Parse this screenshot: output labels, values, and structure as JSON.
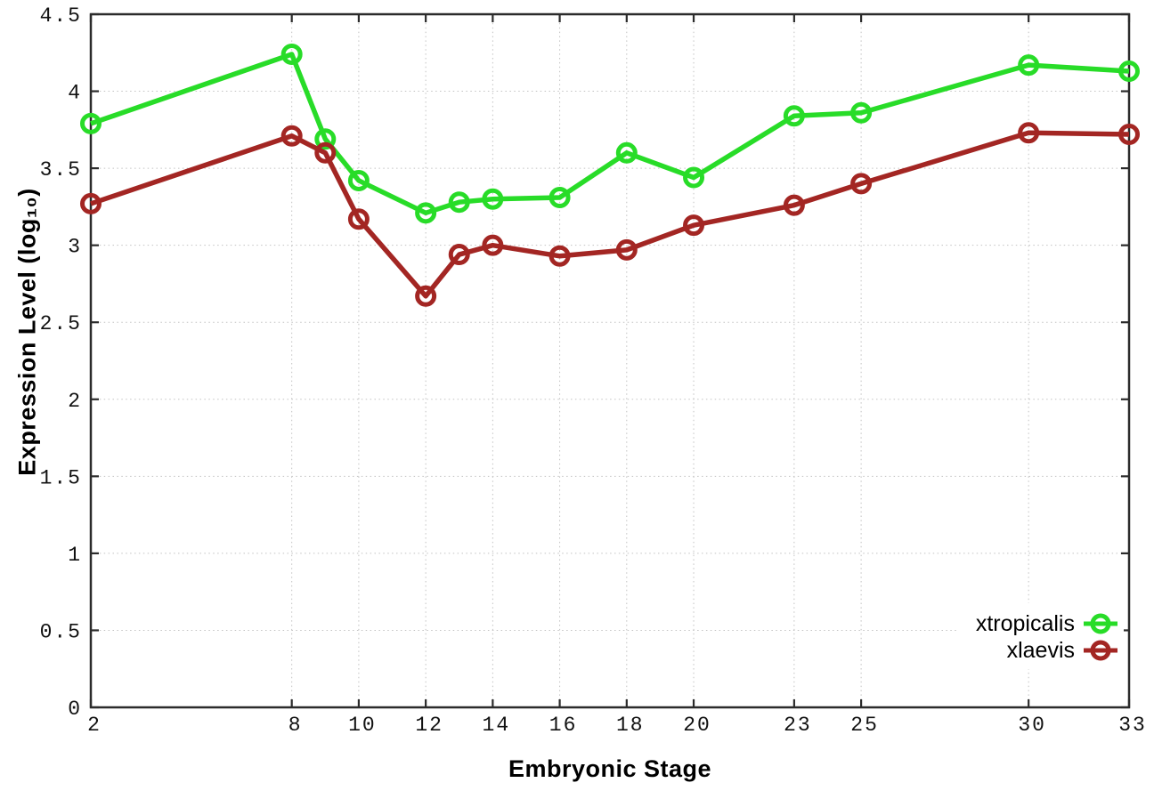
{
  "chart_data": {
    "type": "line",
    "title": "",
    "xlabel": "Embryonic Stage",
    "ylabel": "Expression Level (log₁₀)",
    "x": [
      2,
      8,
      9,
      10,
      12,
      13,
      14,
      16,
      18,
      20,
      23,
      25,
      30,
      33
    ],
    "series": [
      {
        "name": "xtropicalis",
        "color": "#28dc28",
        "values": [
          3.79,
          4.24,
          3.69,
          3.42,
          3.21,
          3.28,
          3.3,
          3.31,
          3.6,
          3.44,
          3.84,
          3.86,
          4.17,
          4.13
        ]
      },
      {
        "name": "xlaevis",
        "color": "#a32623",
        "values": [
          3.27,
          3.71,
          3.6,
          3.17,
          2.67,
          2.94,
          3.0,
          2.93,
          2.97,
          3.13,
          3.26,
          3.4,
          3.73,
          3.72
        ]
      }
    ],
    "xlim": [
      2,
      33
    ],
    "ylim": [
      0,
      4.5
    ],
    "x_ticks": {
      "values": [
        2,
        8,
        10,
        12,
        14,
        16,
        18,
        20,
        23,
        25,
        30,
        33
      ],
      "labels": [
        "2",
        "8",
        "10",
        "12",
        "14",
        "16",
        "18",
        "20",
        "23",
        "25",
        "30",
        "33"
      ]
    },
    "y_ticks": {
      "values": [
        0,
        0.5,
        1,
        1.5,
        2,
        2.5,
        3,
        3.5,
        4,
        4.5
      ],
      "labels": [
        "0",
        "0.5",
        "1",
        "1.5",
        "2",
        "2.5",
        "3",
        "3.5",
        "4",
        "4.5"
      ]
    },
    "grid": true,
    "legend_position": "bottom-right",
    "style": {
      "axis_color": "#2b2b2b",
      "grid_color": "#c2c2c2",
      "background": "#ffffff"
    }
  }
}
